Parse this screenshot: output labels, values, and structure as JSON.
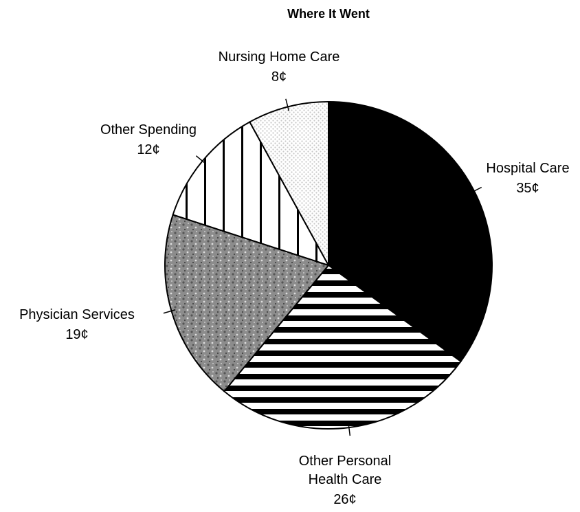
{
  "chart_data": {
    "type": "pie",
    "title": "Where It Went",
    "categories": [
      "Hospital Care",
      "Other Personal Health Care",
      "Physician Services",
      "Other Spending",
      "Nursing Home Care"
    ],
    "values": [
      35,
      26,
      19,
      12,
      8
    ],
    "value_labels": [
      "35¢",
      "26¢",
      "19¢",
      "12¢",
      "8¢"
    ],
    "patterns": [
      "solid",
      "horizontal-stripes",
      "speckle",
      "vertical-stripes",
      "dots"
    ],
    "colors": [
      "#000000",
      "#000000",
      "#8c8c8c",
      "#000000",
      "#c8c8c8"
    ]
  }
}
